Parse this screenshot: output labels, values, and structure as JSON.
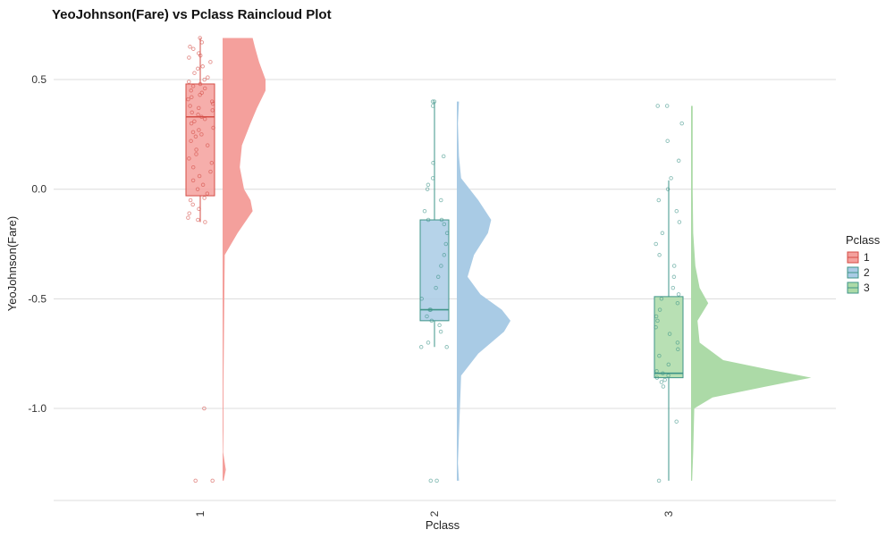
{
  "chart_data": {
    "type": "raincloud",
    "title": "YeoJohnson(Fare) vs Pclass Raincloud Plot",
    "xlabel": "Pclass",
    "ylabel": "YeoJohnson(Fare)",
    "categories": [
      "1",
      "2",
      "3"
    ],
    "y_ticks": [
      0.5,
      0.0,
      -0.5,
      -1.0
    ],
    "y_tick_labels": [
      "0.5",
      "0.0",
      "-0.5",
      "-1.0"
    ],
    "ylim": [
      -1.42,
      0.7
    ],
    "grid": true,
    "legend": {
      "title": "Pclass",
      "position": "right",
      "entries": [
        "1",
        "2",
        "3"
      ]
    },
    "colors": {
      "1": {
        "fill": "#f4a09c",
        "line": "#d44d46"
      },
      "2": {
        "fill": "#a9cbe5",
        "line": "#3e9488"
      },
      "3": {
        "fill": "#acdaa7",
        "line": "#3e9488"
      }
    },
    "series": [
      {
        "name": "1",
        "box": {
          "min": -0.15,
          "q1": -0.03,
          "median": 0.33,
          "q3": 0.48,
          "max": 0.69
        },
        "density": [
          [
            -1.33,
            0.1
          ],
          [
            -1.28,
            0.3
          ],
          [
            -1.2,
            0.05
          ],
          [
            -1.1,
            0.08
          ],
          [
            -0.9,
            0.08
          ],
          [
            -0.3,
            0.2
          ],
          [
            -0.2,
            1.4
          ],
          [
            -0.1,
            2.8
          ],
          [
            -0.05,
            2.6
          ],
          [
            0.0,
            2.0
          ],
          [
            0.1,
            1.6
          ],
          [
            0.2,
            1.8
          ],
          [
            0.3,
            2.6
          ],
          [
            0.37,
            3.2
          ],
          [
            0.45,
            4.0
          ],
          [
            0.5,
            4.0
          ],
          [
            0.58,
            3.4
          ],
          [
            0.65,
            3.0
          ],
          [
            0.69,
            2.8
          ]
        ],
        "points": [
          0.69,
          0.67,
          0.65,
          0.64,
          0.62,
          0.61,
          0.6,
          0.58,
          0.56,
          0.55,
          0.53,
          0.51,
          0.5,
          0.49,
          0.48,
          0.47,
          0.46,
          0.45,
          0.44,
          0.43,
          0.42,
          0.41,
          0.4,
          0.39,
          0.38,
          0.37,
          0.36,
          0.35,
          0.34,
          0.33,
          0.32,
          0.31,
          0.3,
          0.28,
          0.27,
          0.26,
          0.25,
          0.24,
          0.22,
          0.2,
          0.18,
          0.16,
          0.14,
          0.12,
          0.1,
          0.08,
          0.06,
          0.04,
          0.02,
          0.0,
          -0.02,
          -0.04,
          -0.05,
          -0.07,
          -0.09,
          -0.11,
          -0.13,
          -0.14,
          -0.15,
          -1.0,
          -1.33,
          -1.33
        ]
      },
      {
        "name": "2",
        "box": {
          "min": -0.72,
          "q1": -0.6,
          "median": -0.55,
          "q3": -0.14,
          "max": 0.4
        },
        "density": [
          [
            -1.33,
            0.2
          ],
          [
            -1.25,
            0.1
          ],
          [
            -0.85,
            0.4
          ],
          [
            -0.75,
            2.0
          ],
          [
            -0.65,
            4.4
          ],
          [
            -0.6,
            5.0
          ],
          [
            -0.55,
            4.2
          ],
          [
            -0.48,
            2.2
          ],
          [
            -0.4,
            1.0
          ],
          [
            -0.3,
            1.6
          ],
          [
            -0.2,
            2.9
          ],
          [
            -0.14,
            3.2
          ],
          [
            -0.05,
            2.0
          ],
          [
            0.05,
            0.4
          ],
          [
            0.15,
            0.2
          ],
          [
            0.3,
            0.1
          ],
          [
            0.4,
            0.2
          ]
        ],
        "points": [
          0.4,
          0.4,
          0.38,
          0.15,
          0.12,
          0.05,
          0.02,
          0.0,
          -0.05,
          -0.1,
          -0.14,
          -0.14,
          -0.16,
          -0.2,
          -0.25,
          -0.3,
          -0.35,
          -0.4,
          -0.45,
          -0.5,
          -0.55,
          -0.55,
          -0.58,
          -0.6,
          -0.62,
          -0.65,
          -0.7,
          -0.72,
          -0.72,
          -1.33,
          -1.33
        ]
      },
      {
        "name": "3",
        "box": {
          "min": -1.33,
          "q1": -0.86,
          "median": -0.84,
          "q3": -0.49,
          "max": 0.04
        },
        "density": [
          [
            -1.33,
            0.1
          ],
          [
            -1.2,
            0.2
          ],
          [
            -1.0,
            0.3
          ],
          [
            -0.95,
            2.0
          ],
          [
            -0.9,
            7.0
          ],
          [
            -0.86,
            11.2
          ],
          [
            -0.82,
            7.0
          ],
          [
            -0.78,
            3.0
          ],
          [
            -0.7,
            0.8
          ],
          [
            -0.6,
            0.6
          ],
          [
            -0.52,
            1.6
          ],
          [
            -0.45,
            0.8
          ],
          [
            -0.35,
            0.4
          ],
          [
            -0.2,
            0.2
          ],
          [
            0.0,
            0.15
          ],
          [
            0.2,
            0.15
          ],
          [
            0.38,
            0.15
          ]
        ],
        "points": [
          0.38,
          0.38,
          0.3,
          0.22,
          0.13,
          0.05,
          0.0,
          -0.05,
          -0.1,
          -0.15,
          -0.2,
          -0.25,
          -0.3,
          -0.35,
          -0.4,
          -0.45,
          -0.48,
          -0.5,
          -0.52,
          -0.55,
          -0.58,
          -0.6,
          -0.63,
          -0.66,
          -0.7,
          -0.73,
          -0.76,
          -0.8,
          -0.83,
          -0.84,
          -0.85,
          -0.86,
          -0.87,
          -0.88,
          -0.9,
          -1.06,
          -1.33
        ]
      }
    ]
  }
}
